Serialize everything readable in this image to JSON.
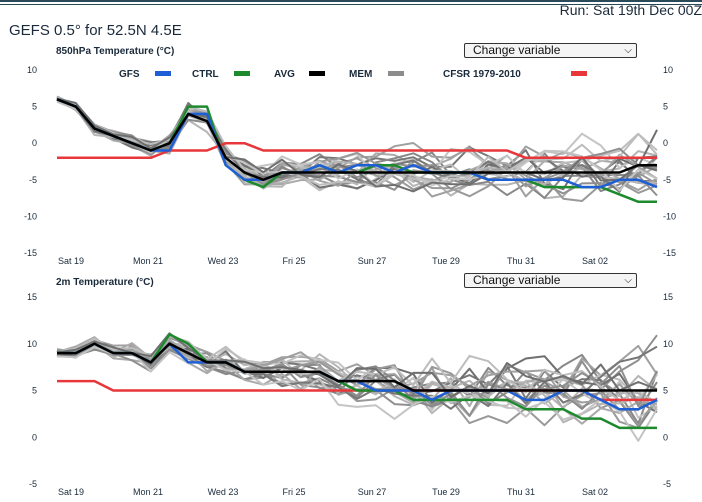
{
  "header": {
    "run": "Run: Sat 19th Dec 00Z",
    "title": "GEFS 0.5° for 52.5N 4.5E"
  },
  "panels": [
    {
      "title": "850hPa Temperature (°C)",
      "select_label": "Change variable"
    },
    {
      "title": "2m Temperature (°C)",
      "select_label": "Change variable"
    }
  ],
  "legend": [
    {
      "label": "GFS",
      "color": "#1f5fd6"
    },
    {
      "label": "CTRL",
      "color": "#1e8a2e"
    },
    {
      "label": "AVG",
      "color": "#000000"
    },
    {
      "label": "MEM",
      "color": "#8c8c8c"
    },
    {
      "label": "CFSR 1979-2010",
      "color": "#e8373a"
    }
  ],
  "colors": {
    "gfs": "#1f5fd6",
    "ctrl": "#1e8a2e",
    "avg": "#000000",
    "mem": "#9a9a9a",
    "cfsr": "#e8373a"
  },
  "chart_data": [
    {
      "type": "line",
      "title": "850hPa Temperature (°C)",
      "x_start": "2020-12-19",
      "x_end": "2021-01-04",
      "xticks": [
        "Sat 19",
        "Mon 21",
        "Wed 23",
        "Fri 25",
        "Sun 27",
        "Tue 29",
        "Thu 31",
        "Sat 02"
      ],
      "yticks": [
        10,
        5,
        0,
        -5,
        -10,
        -15
      ],
      "ylim": [
        -15,
        10
      ],
      "series": [
        {
          "name": "GFS",
          "values": [
            6,
            5,
            2,
            1,
            0,
            -1,
            -1,
            4,
            4,
            -3,
            -5,
            -5,
            -4,
            -4,
            -3,
            -4,
            -3,
            -3,
            -4,
            -3,
            -4,
            -4,
            -4,
            -5,
            -5,
            -5,
            -5,
            -5,
            -6,
            -6,
            -5,
            -5,
            -6
          ]
        },
        {
          "name": "CTRL",
          "values": [
            6,
            5,
            2,
            1,
            0,
            -1,
            0,
            5,
            5,
            -3,
            -5,
            -6,
            -4,
            -4,
            -3,
            -4,
            -4,
            -3,
            -3,
            -4,
            -4,
            -4,
            -4,
            -5,
            -5,
            -5,
            -6,
            -6,
            -6,
            -6,
            -7,
            -8,
            -8
          ]
        },
        {
          "name": "AVG",
          "values": [
            6,
            5,
            2,
            1,
            0,
            -1,
            0,
            4,
            3,
            -2,
            -4,
            -5,
            -4,
            -4,
            -4,
            -4,
            -4,
            -4,
            -4,
            -4,
            -4,
            -4,
            -4,
            -4,
            -4,
            -4,
            -4,
            -4,
            -4,
            -4,
            -4,
            -3,
            -3
          ]
        },
        {
          "name": "CFSR 1979-2010",
          "values": [
            -2,
            -2,
            -2,
            -2,
            -2,
            -2,
            -1,
            -1,
            -1,
            0,
            0,
            -1,
            -1,
            -1,
            -1,
            -1,
            -1,
            -1,
            -1,
            -1,
            -1,
            -1,
            -1,
            -1,
            -1,
            -2,
            -2,
            -2,
            -2,
            -2,
            -2,
            -2,
            -2
          ]
        }
      ]
    },
    {
      "type": "line",
      "title": "2m Temperature (°C)",
      "x_start": "2020-12-19",
      "x_end": "2021-01-04",
      "xticks": [
        "Sat 19",
        "Mon 21",
        "Wed 23",
        "Fri 25",
        "Sun 27",
        "Tue 29",
        "Thu 31",
        "Sat 02"
      ],
      "yticks": [
        15,
        10,
        5,
        0,
        -5
      ],
      "ylim": [
        -5,
        15
      ],
      "series": [
        {
          "name": "GFS",
          "values": [
            9,
            9,
            10,
            9,
            9,
            8,
            10,
            8,
            8,
            8,
            7,
            7,
            7,
            7,
            7,
            6,
            6,
            5,
            5,
            5,
            4,
            5,
            5,
            5,
            5,
            4,
            4,
            5,
            5,
            4,
            3,
            3,
            4
          ]
        },
        {
          "name": "CTRL",
          "values": [
            9,
            9,
            10,
            9,
            9,
            8,
            11,
            10,
            8,
            8,
            7,
            7,
            7,
            7,
            7,
            6,
            5,
            5,
            5,
            4,
            4,
            4,
            4,
            4,
            4,
            3,
            3,
            3,
            2,
            2,
            1,
            1,
            1
          ]
        },
        {
          "name": "AVG",
          "values": [
            9,
            9,
            10,
            9,
            9,
            8,
            10,
            9,
            8,
            8,
            7,
            7,
            7,
            7,
            7,
            6,
            6,
            6,
            6,
            5,
            5,
            5,
            5,
            5,
            5,
            5,
            5,
            5,
            5,
            5,
            5,
            5,
            5
          ]
        },
        {
          "name": "CFSR 1979-2010",
          "values": [
            6,
            6,
            6,
            5,
            5,
            5,
            5,
            5,
            5,
            5,
            5,
            5,
            5,
            5,
            5,
            5,
            5,
            5,
            5,
            5,
            5,
            5,
            5,
            5,
            5,
            5,
            5,
            5,
            5,
            4,
            4,
            4,
            4
          ]
        }
      ]
    }
  ]
}
